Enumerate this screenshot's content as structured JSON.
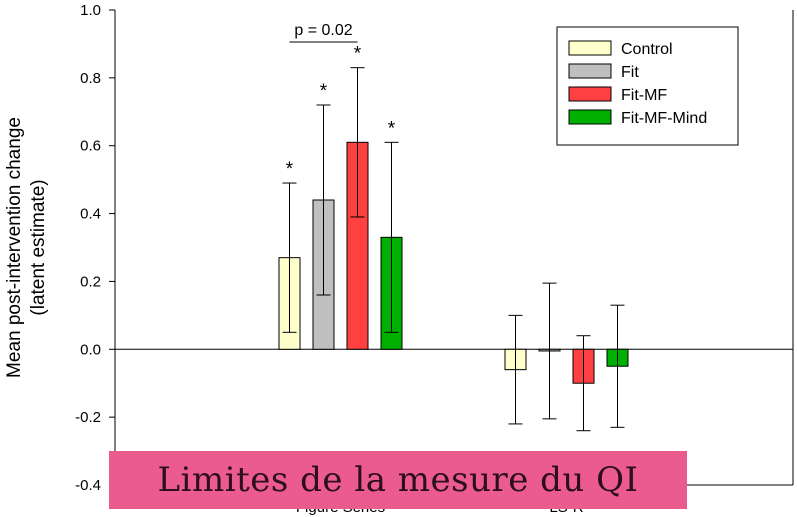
{
  "chart_data": {
    "type": "bar",
    "ylabel": [
      "Mean post-intervention change",
      "(latent estimate)"
    ],
    "ylim": [
      -0.4,
      1.0
    ],
    "yticks": [
      1.0,
      0.8,
      0.6,
      0.4,
      0.2,
      0.0,
      -0.2,
      -0.4
    ],
    "ytick_labels": [
      "1.0",
      "0.8",
      "0.6",
      "0.4",
      "0.2",
      "0.0",
      "-0.2",
      "-0.4"
    ],
    "groups": [
      "Figure Series",
      "LS-R"
    ],
    "series": [
      {
        "name": "Control",
        "color": "#ffffcc",
        "values": [
          0.27,
          -0.06
        ],
        "err_low": [
          0.05,
          -0.22
        ],
        "err_high": [
          0.49,
          0.1
        ],
        "sig": [
          "*",
          ""
        ]
      },
      {
        "name": "Fit",
        "color": "#bfbfbf",
        "values": [
          0.44,
          -0.005
        ],
        "err_low": [
          0.16,
          -0.205
        ],
        "err_high": [
          0.72,
          0.195
        ],
        "sig": [
          "*",
          ""
        ]
      },
      {
        "name": "Fit-MF",
        "color": "#ff4040",
        "values": [
          0.61,
          -0.1
        ],
        "err_low": [
          0.39,
          -0.24
        ],
        "err_high": [
          0.83,
          0.04
        ],
        "sig": [
          "*",
          ""
        ]
      },
      {
        "name": "Fit-MF-Mind",
        "color": "#00b000",
        "values": [
          0.33,
          -0.05
        ],
        "err_low": [
          0.05,
          -0.23
        ],
        "err_high": [
          0.61,
          0.13
        ],
        "sig": [
          "*",
          ""
        ]
      }
    ],
    "annotations": [
      {
        "text": "p = 0.02",
        "between": [
          "Control",
          "Fit-MF"
        ],
        "group": 0
      }
    ],
    "legend_position": "top-right",
    "grid": false
  },
  "banner": {
    "text": "Limites de la mesure du QI"
  }
}
